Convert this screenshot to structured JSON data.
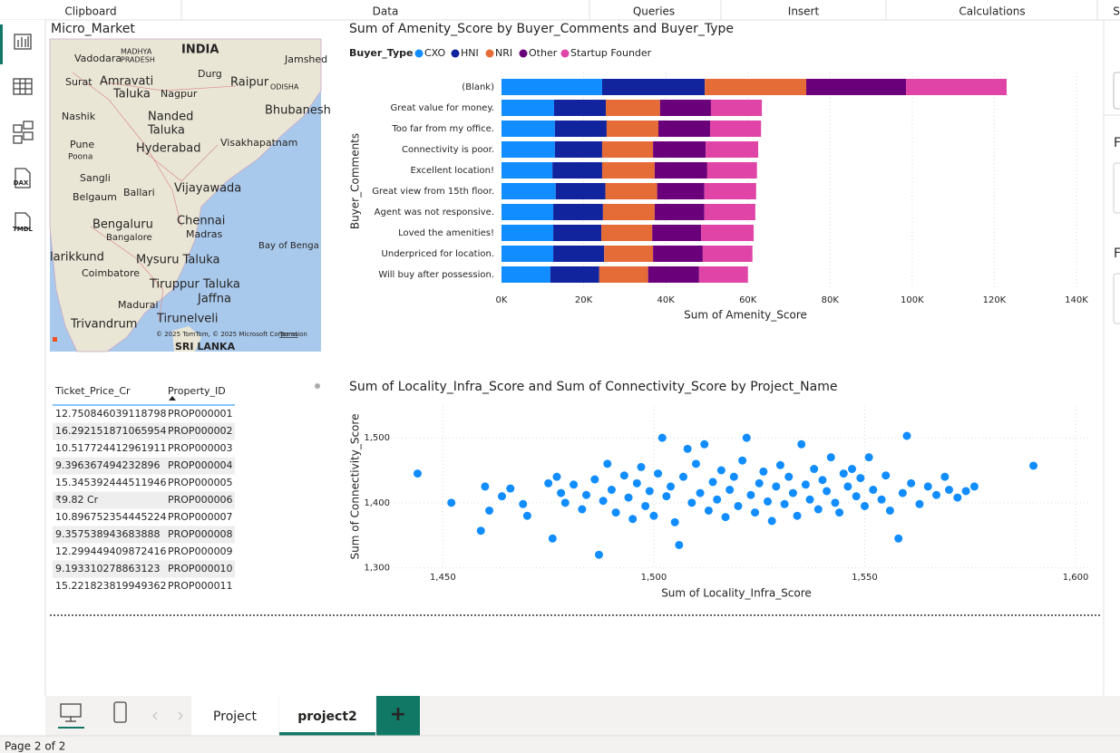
{
  "ribbon": [
    "Clipboard",
    "Data",
    "Queries",
    "Insert",
    "Calculations",
    "S"
  ],
  "sidebar": [
    "DAX",
    "TMDL"
  ],
  "map": {
    "title": "Micro_Market",
    "labels": [
      "INDIA",
      "Vadodara",
      "MADHYA",
      "PRADESH",
      "Jamshed",
      "Surat",
      "Amravati",
      "Durg",
      "Raipur",
      "ODISHA",
      "Taluka",
      "Nagpur",
      "Bhubanesh",
      "Nashik",
      "Nanded",
      "Taluka",
      "Pune",
      "Poona",
      "Hyderabad",
      "Visakhapatnam",
      "Sangli",
      "Belgaum",
      "Ballari",
      "Vijayawada",
      "Bengaluru",
      "Bangalore",
      "Chennai",
      "Madras",
      "Bay of Benga",
      "larikkund",
      "Mysuru Taluka",
      "Coimbatore",
      "Tiruppur Taluka",
      "Jaffna",
      "Madurai",
      "Tirunelveli",
      "Trivandrum",
      "SRI LANKA"
    ],
    "attribution": "© 2025 TomTom, © 2025 Microsoft Corporation",
    "terms": "Terms"
  },
  "table": {
    "headers": [
      "Ticket_Price_Cr",
      "Property_ID"
    ],
    "rows": [
      [
        "12.750846039118798",
        "PROP000001"
      ],
      [
        "16.292151871065954",
        "PROP000002"
      ],
      [
        "10.517724412961911",
        "PROP000003"
      ],
      [
        "9.396367494232896",
        "PROP000004"
      ],
      [
        "15.345392444511946",
        "PROP000005"
      ],
      [
        "₹9.82 Cr",
        "PROP000006"
      ],
      [
        "10.896752354445224",
        "PROP000007"
      ],
      [
        "9.357538943683888",
        "PROP000008"
      ],
      [
        "12.299449409872416",
        "PROP000009"
      ],
      [
        "9.193310278863123",
        "PROP000010"
      ],
      [
        "15.221823819949362",
        "PROP000011"
      ]
    ]
  },
  "chart_data": [
    {
      "type": "bar",
      "orientation": "horizontal",
      "stacked": true,
      "title": "Sum of Amenity_Score by Buyer_Comments and Buyer_Type",
      "legend_title": "Buyer_Type",
      "x_label": "Sum of Amenity_Score",
      "y_label": "Buyer_Comments",
      "categories": [
        "(Blank)",
        "Great value for money.",
        "Too far from my office.",
        "Connectivity is poor.",
        "Excellent location!",
        "Great view from 15th floor.",
        "Agent was not responsive.",
        "Loved the amenities!",
        "Underpriced for location.",
        "Will buy after possession."
      ],
      "series": [
        {
          "name": "CXO",
          "color": "#118dff",
          "values": [
            24500,
            12800,
            13000,
            13000,
            12400,
            13200,
            12600,
            12600,
            12600,
            11900
          ]
        },
        {
          "name": "HNI",
          "color": "#12239e",
          "values": [
            25000,
            12600,
            12600,
            11500,
            12100,
            12100,
            12100,
            11700,
            12400,
            11900
          ]
        },
        {
          "name": "NRI",
          "color": "#e66c37",
          "values": [
            24700,
            13200,
            12600,
            12400,
            12800,
            12600,
            12600,
            12400,
            11900,
            11900
          ]
        },
        {
          "name": "Other",
          "color": "#6b007b",
          "values": [
            24300,
            12400,
            12600,
            12800,
            12800,
            11500,
            12100,
            11900,
            12100,
            12400
          ]
        },
        {
          "name": "Startup Founder",
          "color": "#e044a7",
          "values": [
            24500,
            12400,
            12400,
            12800,
            12100,
            12600,
            12400,
            12800,
            12100,
            11900
          ]
        }
      ],
      "xlim": [
        0,
        140000
      ],
      "xticks": [
        {
          "value": 0,
          "label": "0K"
        },
        {
          "value": 20000,
          "label": "20K"
        },
        {
          "value": 40000,
          "label": "40K"
        },
        {
          "value": 60000,
          "label": "60K"
        },
        {
          "value": 80000,
          "label": "80K"
        },
        {
          "value": 100000,
          "label": "100K"
        },
        {
          "value": 120000,
          "label": "120K"
        },
        {
          "value": 140000,
          "label": "140K"
        }
      ],
      "grid": true
    },
    {
      "type": "scatter",
      "title": "Sum of Locality_Infra_Score and Sum of Connectivity_Score by Project_Name",
      "x_label": "Sum of Locality_Infra_Score",
      "y_label": "Sum of Connectivity_Score",
      "color": "#118dff",
      "x": [
        1444,
        1452,
        1459,
        1460,
        1461,
        1464,
        1466,
        1469,
        1470,
        1475,
        1476,
        1477,
        1478,
        1479,
        1481,
        1483,
        1484,
        1486,
        1487,
        1488,
        1489,
        1490,
        1491,
        1493,
        1494,
        1495,
        1496,
        1497,
        1498,
        1499,
        1500,
        1501,
        1502,
        1503,
        1504,
        1505,
        1506,
        1507,
        1508,
        1509,
        1510,
        1511,
        1512,
        1513,
        1514,
        1515,
        1516,
        1517,
        1518,
        1519,
        1520,
        1521,
        1522,
        1523,
        1524,
        1525,
        1526,
        1527,
        1528,
        1529,
        1530,
        1531,
        1532,
        1533,
        1534,
        1535,
        1536,
        1537,
        1538,
        1539,
        1540,
        1541,
        1542,
        1543,
        1544,
        1545,
        1546,
        1547,
        1548,
        1549,
        1550,
        1551,
        1552,
        1554,
        1555,
        1556,
        1558,
        1559,
        1560,
        1561,
        1563,
        1565,
        1567,
        1569,
        1570,
        1572,
        1574,
        1576,
        1590
      ],
      "values": [
        1445,
        1400,
        1357,
        1425,
        1388,
        1410,
        1422,
        1398,
        1380,
        1430,
        1345,
        1440,
        1415,
        1400,
        1428,
        1390,
        1412,
        1436,
        1320,
        1403,
        1460,
        1420,
        1385,
        1442,
        1408,
        1375,
        1430,
        1455,
        1395,
        1418,
        1380,
        1445,
        1500,
        1410,
        1425,
        1370,
        1335,
        1440,
        1483,
        1400,
        1460,
        1415,
        1490,
        1388,
        1432,
        1405,
        1450,
        1378,
        1420,
        1440,
        1395,
        1465,
        1500,
        1412,
        1385,
        1430,
        1448,
        1402,
        1372,
        1425,
        1458,
        1398,
        1440,
        1415,
        1380,
        1490,
        1428,
        1405,
        1452,
        1390,
        1435,
        1418,
        1470,
        1400,
        1385,
        1445,
        1425,
        1452,
        1410,
        1438,
        1395,
        1470,
        1420,
        1405,
        1442,
        1388,
        1345,
        1415,
        1503,
        1430,
        1398,
        1425,
        1412,
        1440,
        1420,
        1408,
        1418,
        1425,
        1457
      ],
      "xlim": [
        1431,
        1603
      ],
      "ylim": [
        1298,
        1549
      ],
      "xticks": [
        {
          "value": 1450,
          "label": "1,450"
        },
        {
          "value": 1500,
          "label": "1,500"
        },
        {
          "value": 1550,
          "label": "1,550"
        },
        {
          "value": 1600,
          "label": "1,600"
        }
      ],
      "yticks": [
        {
          "value": 1300,
          "label": "1,300"
        },
        {
          "value": 1400,
          "label": "1,400"
        },
        {
          "value": 1500,
          "label": "1,500"
        }
      ],
      "grid": true
    }
  ],
  "tabs": {
    "pages": [
      "Project",
      "project2"
    ],
    "add": "+"
  },
  "status": "Page 2 of 2",
  "right_pane": [
    "F",
    "F"
  ]
}
